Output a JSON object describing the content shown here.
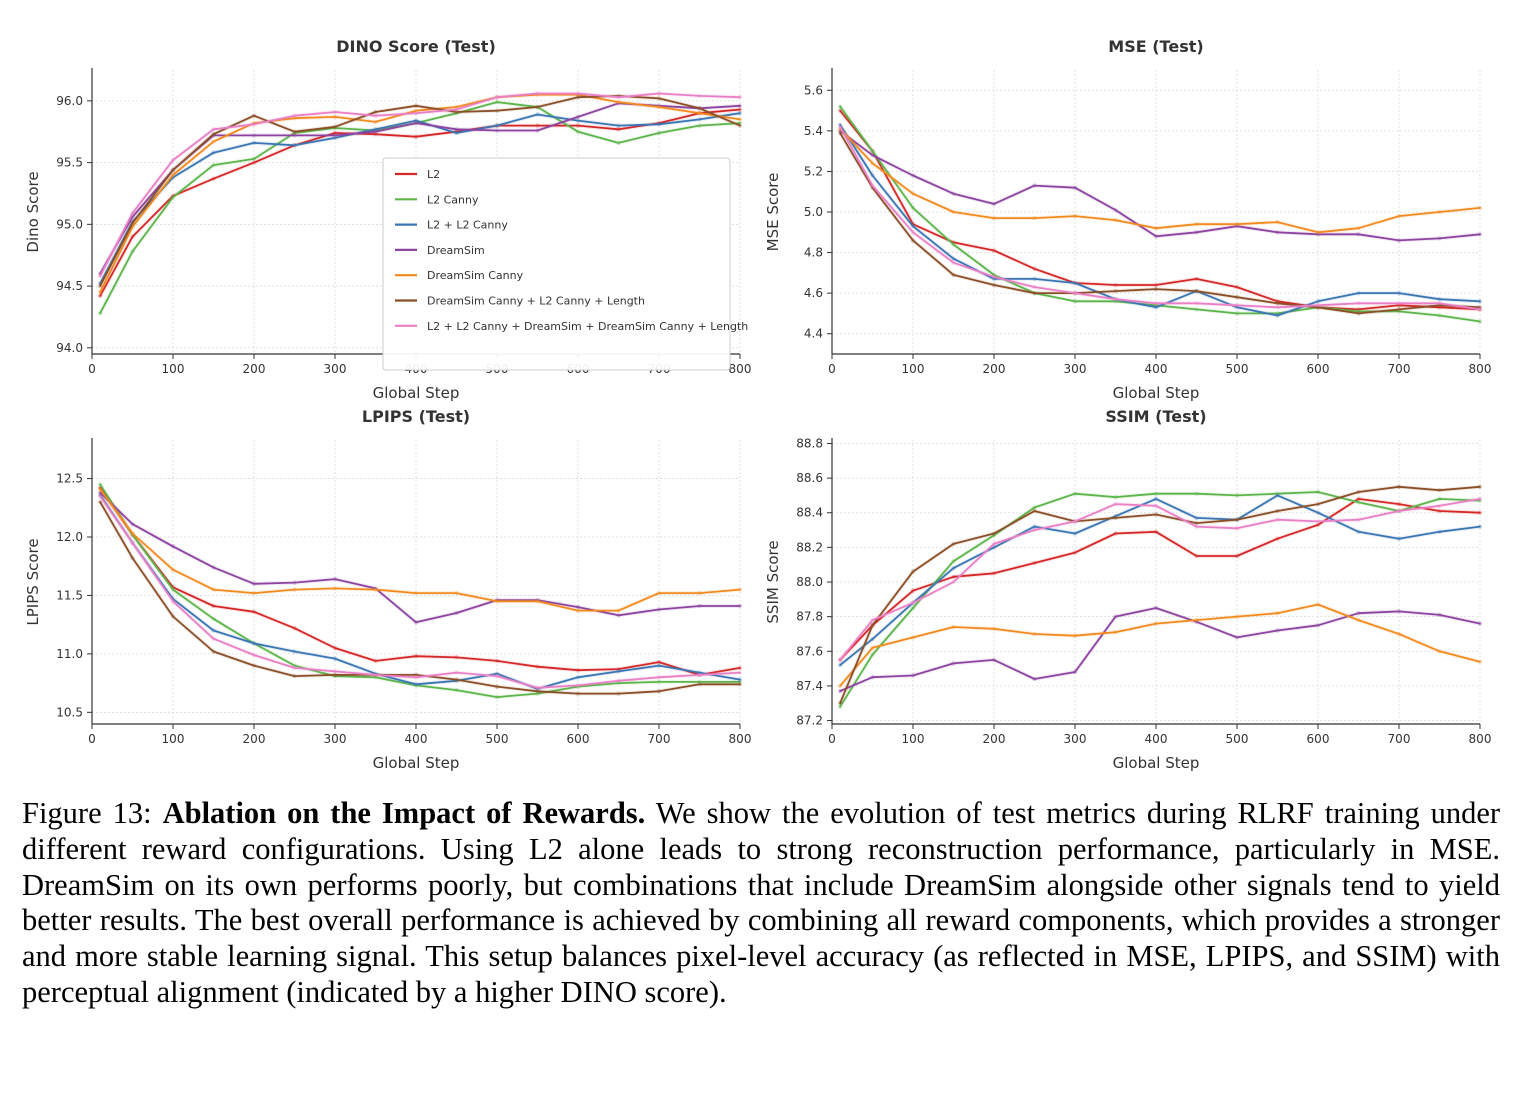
{
  "legend_title": "",
  "colors": {
    "L2": "#d62728",
    "L2 Canny": "#5cb54a",
    "L2 + L2 Canny": "#3a76b3",
    "DreamSim": "#8c44a0",
    "DreamSim Canny": "#f28a1e",
    "DreamSim Canny + L2 Canny + Length": "#8b4f28",
    "L2 + L2 Canny + DreamSim + DreamSim Canny + Length": "#ea7fc6"
  },
  "chart_data": [
    {
      "type": "line",
      "title": "DINO Score (Test)",
      "xlabel": "Global Step",
      "ylabel": "Dino Score",
      "xlim": [
        0,
        800
      ],
      "ylim": [
        93.95,
        96.25
      ],
      "xticks": [
        0,
        100,
        200,
        300,
        400,
        500,
        600,
        700,
        800
      ],
      "yticks": [
        94.0,
        94.5,
        95.0,
        95.5,
        96.0
      ],
      "ytick_labels": [
        "94.0",
        "94.5",
        "95.0",
        "95.5",
        "96.0"
      ],
      "grid": true,
      "legend": "center-right",
      "x": [
        10,
        50,
        100,
        150,
        200,
        250,
        300,
        350,
        400,
        450,
        500,
        550,
        600,
        650,
        700,
        750,
        800
      ],
      "series": [
        {
          "name": "L2",
          "values": [
            94.42,
            94.9,
            95.23,
            95.37,
            95.5,
            95.64,
            95.74,
            95.73,
            95.71,
            95.75,
            95.8,
            95.8,
            95.8,
            95.77,
            95.82,
            95.9,
            95.93
          ]
        },
        {
          "name": "L2 Canny",
          "values": [
            94.28,
            94.78,
            95.22,
            95.48,
            95.53,
            95.74,
            95.78,
            95.76,
            95.82,
            95.9,
            95.99,
            95.95,
            95.75,
            95.66,
            95.74,
            95.8,
            95.82
          ]
        },
        {
          "name": "L2 + L2 Canny",
          "values": [
            94.52,
            95.02,
            95.38,
            95.58,
            95.66,
            95.64,
            95.7,
            95.77,
            95.84,
            95.74,
            95.8,
            95.89,
            95.84,
            95.8,
            95.81,
            95.85,
            95.9
          ]
        },
        {
          "name": "DreamSim",
          "values": [
            94.6,
            95.06,
            95.44,
            95.72,
            95.72,
            95.72,
            95.72,
            95.75,
            95.82,
            95.77,
            95.76,
            95.76,
            95.87,
            95.98,
            95.96,
            95.94,
            95.96
          ]
        },
        {
          "name": "DreamSim Canny",
          "values": [
            94.45,
            94.98,
            95.4,
            95.67,
            95.82,
            95.86,
            95.87,
            95.83,
            95.92,
            95.95,
            96.03,
            96.05,
            96.05,
            95.99,
            95.95,
            95.9,
            95.85
          ]
        },
        {
          "name": "DreamSim Canny + L2 Canny + Length",
          "values": [
            94.5,
            95.01,
            95.44,
            95.73,
            95.88,
            95.75,
            95.79,
            95.91,
            95.96,
            95.91,
            95.92,
            95.95,
            96.03,
            96.04,
            96.02,
            95.94,
            95.8
          ]
        },
        {
          "name": "L2 + L2 Canny + DreamSim + DreamSim Canny + Length",
          "values": [
            94.58,
            95.09,
            95.52,
            95.77,
            95.81,
            95.88,
            95.91,
            95.88,
            95.9,
            95.93,
            96.03,
            96.06,
            96.06,
            96.03,
            96.06,
            96.04,
            96.03
          ]
        }
      ]
    },
    {
      "type": "line",
      "title": "MSE (Test)",
      "xlabel": "Global Step",
      "ylabel": "MSE Score",
      "xlim": [
        0,
        800
      ],
      "ylim": [
        4.3,
        5.7
      ],
      "xticks": [
        0,
        100,
        200,
        300,
        400,
        500,
        600,
        700,
        800
      ],
      "yticks": [
        4.4,
        4.6,
        4.8,
        5.0,
        5.2,
        5.4,
        5.6
      ],
      "ytick_labels": [
        "4.4",
        "4.6",
        "4.8",
        "5.0",
        "5.2",
        "5.4",
        "5.6"
      ],
      "grid": true,
      "x": [
        10,
        50,
        100,
        150,
        200,
        250,
        300,
        350,
        400,
        450,
        500,
        550,
        600,
        650,
        700,
        750,
        800
      ],
      "series": [
        {
          "name": "L2",
          "values": [
            5.5,
            5.3,
            4.94,
            4.85,
            4.81,
            4.72,
            4.65,
            4.64,
            4.64,
            4.67,
            4.63,
            4.56,
            4.53,
            4.52,
            4.54,
            4.53,
            4.52
          ]
        },
        {
          "name": "L2 Canny",
          "values": [
            5.52,
            5.3,
            5.02,
            4.84,
            4.69,
            4.6,
            4.56,
            4.56,
            4.54,
            4.52,
            4.5,
            4.5,
            4.53,
            4.51,
            4.51,
            4.49,
            4.46
          ]
        },
        {
          "name": "L2 + L2 Canny",
          "values": [
            5.43,
            5.18,
            4.93,
            4.77,
            4.67,
            4.67,
            4.65,
            4.57,
            4.53,
            4.61,
            4.53,
            4.49,
            4.56,
            4.6,
            4.6,
            4.57,
            4.56
          ]
        },
        {
          "name": "DreamSim",
          "values": [
            5.4,
            5.28,
            5.18,
            5.09,
            5.04,
            5.13,
            5.12,
            5.01,
            4.88,
            4.9,
            4.93,
            4.9,
            4.89,
            4.89,
            4.86,
            4.87,
            4.89
          ]
        },
        {
          "name": "DreamSim Canny",
          "values": [
            5.41,
            5.24,
            5.09,
            5.0,
            4.97,
            4.97,
            4.98,
            4.96,
            4.92,
            4.94,
            4.94,
            4.95,
            4.9,
            4.92,
            4.98,
            5.0,
            5.02
          ]
        },
        {
          "name": "DreamSim Canny + L2 Canny + Length",
          "values": [
            5.39,
            5.12,
            4.86,
            4.69,
            4.64,
            4.6,
            4.6,
            4.61,
            4.62,
            4.61,
            4.58,
            4.55,
            4.53,
            4.5,
            4.52,
            4.54,
            4.53
          ]
        },
        {
          "name": "L2 + L2 Canny + DreamSim + DreamSim Canny + Length",
          "values": [
            5.42,
            5.13,
            4.9,
            4.75,
            4.68,
            4.63,
            4.6,
            4.57,
            4.55,
            4.55,
            4.54,
            4.53,
            4.54,
            4.55,
            4.55,
            4.55,
            4.52
          ]
        }
      ]
    },
    {
      "type": "line",
      "title": "LPIPS (Test)",
      "xlabel": "Global Step",
      "ylabel": "LPIPS Score",
      "xlim": [
        0,
        800
      ],
      "ylim": [
        10.4,
        12.83
      ],
      "xticks": [
        0,
        100,
        200,
        300,
        400,
        500,
        600,
        700,
        800
      ],
      "yticks": [
        10.5,
        11.0,
        11.5,
        12.0,
        12.5
      ],
      "ytick_labels": [
        "10.5",
        "11.0",
        "11.5",
        "12.0",
        "12.5"
      ],
      "grid": true,
      "x": [
        10,
        50,
        100,
        150,
        200,
        250,
        300,
        350,
        400,
        450,
        500,
        550,
        600,
        650,
        700,
        750,
        800
      ],
      "series": [
        {
          "name": "L2",
          "values": [
            12.42,
            12.02,
            11.57,
            11.41,
            11.36,
            11.22,
            11.05,
            10.94,
            10.98,
            10.97,
            10.94,
            10.89,
            10.86,
            10.87,
            10.93,
            10.82,
            10.88
          ]
        },
        {
          "name": "L2 Canny",
          "values": [
            12.45,
            12.02,
            11.55,
            11.3,
            11.09,
            10.9,
            10.81,
            10.8,
            10.73,
            10.69,
            10.63,
            10.66,
            10.72,
            10.75,
            10.76,
            10.76,
            10.76
          ]
        },
        {
          "name": "L2 + L2 Canny",
          "values": [
            12.36,
            11.95,
            11.47,
            11.2,
            11.09,
            11.02,
            10.96,
            10.83,
            10.74,
            10.77,
            10.83,
            10.7,
            10.8,
            10.85,
            10.9,
            10.84,
            10.78
          ]
        },
        {
          "name": "DreamSim",
          "values": [
            12.38,
            12.11,
            11.92,
            11.74,
            11.6,
            11.61,
            11.64,
            11.56,
            11.27,
            11.35,
            11.46,
            11.46,
            11.4,
            11.33,
            11.38,
            11.41,
            11.41
          ]
        },
        {
          "name": "DreamSim Canny",
          "values": [
            12.41,
            12.03,
            11.72,
            11.55,
            11.52,
            11.55,
            11.56,
            11.55,
            11.52,
            11.52,
            11.45,
            11.45,
            11.37,
            11.37,
            11.52,
            11.52,
            11.55
          ]
        },
        {
          "name": "DreamSim Canny + L2 Canny + Length",
          "values": [
            12.3,
            11.82,
            11.32,
            11.02,
            10.9,
            10.81,
            10.82,
            10.82,
            10.82,
            10.78,
            10.72,
            10.68,
            10.66,
            10.66,
            10.68,
            10.74,
            10.74
          ]
        },
        {
          "name": "L2 + L2 Canny + DreamSim + DreamSim Canny + Length",
          "values": [
            12.35,
            11.95,
            11.45,
            11.13,
            10.99,
            10.88,
            10.85,
            10.82,
            10.8,
            10.84,
            10.81,
            10.71,
            10.73,
            10.77,
            10.8,
            10.82,
            10.84
          ]
        }
      ]
    },
    {
      "type": "line",
      "title": "SSIM (Test)",
      "xlabel": "Global Step",
      "ylabel": "SSIM Score",
      "xlim": [
        0,
        800
      ],
      "ylim": [
        87.18,
        88.82
      ],
      "xticks": [
        0,
        100,
        200,
        300,
        400,
        500,
        600,
        700,
        800
      ],
      "yticks": [
        87.2,
        87.4,
        87.6,
        87.8,
        88.0,
        88.2,
        88.4,
        88.6,
        88.8
      ],
      "ytick_labels": [
        "87.2",
        "87.4",
        "87.6",
        "87.8",
        "88.0",
        "88.2",
        "88.4",
        "88.6",
        "88.8"
      ],
      "grid": true,
      "x": [
        10,
        50,
        100,
        150,
        200,
        250,
        300,
        350,
        400,
        450,
        500,
        550,
        600,
        650,
        700,
        750,
        800
      ],
      "series": [
        {
          "name": "L2",
          "values": [
            87.55,
            87.75,
            87.95,
            88.03,
            88.05,
            88.11,
            88.17,
            88.28,
            88.29,
            88.15,
            88.15,
            88.25,
            88.33,
            88.48,
            88.45,
            88.41,
            88.4
          ]
        },
        {
          "name": "L2 Canny",
          "values": [
            87.28,
            87.58,
            87.85,
            88.12,
            88.27,
            88.43,
            88.51,
            88.49,
            88.51,
            88.51,
            88.5,
            88.51,
            88.52,
            88.46,
            88.41,
            88.48,
            88.47
          ]
        },
        {
          "name": "L2 + L2 Canny",
          "values": [
            87.52,
            87.67,
            87.88,
            88.08,
            88.2,
            88.32,
            88.28,
            88.38,
            88.48,
            88.37,
            88.36,
            88.5,
            88.4,
            88.29,
            88.25,
            88.29,
            88.32
          ]
        },
        {
          "name": "DreamSim",
          "values": [
            87.37,
            87.45,
            87.46,
            87.53,
            87.55,
            87.44,
            87.48,
            87.8,
            87.85,
            87.77,
            87.68,
            87.72,
            87.75,
            87.82,
            87.83,
            87.81,
            87.76
          ]
        },
        {
          "name": "DreamSim Canny",
          "values": [
            87.4,
            87.62,
            87.68,
            87.74,
            87.73,
            87.7,
            87.69,
            87.71,
            87.76,
            87.78,
            87.8,
            87.82,
            87.87,
            87.78,
            87.7,
            87.6,
            87.54
          ]
        },
        {
          "name": "DreamSim Canny + L2 Canny + Length",
          "values": [
            87.3,
            87.75,
            88.06,
            88.22,
            88.28,
            88.41,
            88.35,
            88.37,
            88.39,
            88.34,
            88.36,
            88.41,
            88.45,
            88.52,
            88.55,
            88.53,
            88.55
          ]
        },
        {
          "name": "L2 + L2 Canny + DreamSim + DreamSim Canny + Length",
          "values": [
            87.55,
            87.78,
            87.88,
            88.0,
            88.22,
            88.3,
            88.35,
            88.45,
            88.44,
            88.32,
            88.31,
            88.36,
            88.35,
            88.36,
            88.41,
            88.44,
            88.48
          ]
        }
      ]
    }
  ],
  "caption": {
    "label": "Figure 13:",
    "bold_title": "Ablation on the Impact of Rewards.",
    "text": "We show the evolution of test metrics during RLRF training under different reward configurations. Using L2 alone leads to strong reconstruction performance, particularly in MSE. DreamSim on its own performs poorly, but combinations that include DreamSim alongside other signals tend to yield better results. The best overall performance is achieved by combining all reward components, which provides a stronger and more stable learning signal.  This setup balances pixel-level accuracy (as reflected in MSE, LPIPS, and SSIM) with perceptual alignment (indicated by a higher DINO score)."
  }
}
